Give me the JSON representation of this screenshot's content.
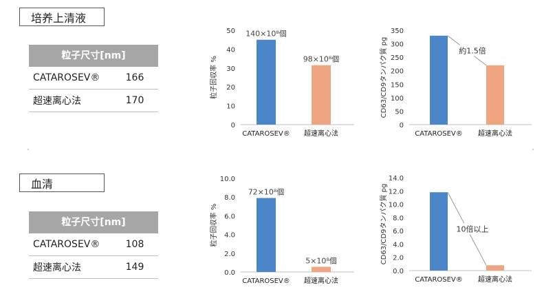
{
  "sections": [
    {
      "label": "培养上清液",
      "table": {
        "header": "粒子尺寸[nm]",
        "rows": [
          {
            "method": "CATAROSEV®",
            "value": "166"
          },
          {
            "method": "超速离心法",
            "value": "170"
          }
        ]
      }
    },
    {
      "label": "血清",
      "table": {
        "header": "粒子尺寸[nm]",
        "rows": [
          {
            "method": "CATAROSEV®",
            "value": "108"
          },
          {
            "method": "超速离心法",
            "value": "149"
          }
        ]
      }
    }
  ],
  "colors": {
    "blue": "#4a86c8",
    "orange": "#f0a582",
    "header_gray": "#a6a6a6"
  },
  "chart_data": [
    {
      "id": "c1",
      "type": "bar",
      "categories": [
        "CATAROSEV®",
        "超速离心法"
      ],
      "values": [
        45,
        31.5
      ],
      "data_labels": [
        "140×10⁸個",
        "98×10⁸個"
      ],
      "ylabel": "粒子回収率 %",
      "ylim": [
        0,
        50
      ],
      "yticks": [
        "0",
        "10",
        "20",
        "30",
        "40",
        "50"
      ],
      "grid": false
    },
    {
      "id": "c2",
      "type": "bar",
      "categories": [
        "CATAROSEV®",
        "超速离心法"
      ],
      "values": [
        330,
        220
      ],
      "ylabel": "CD63/CD9タンパク質 pg",
      "ylim": [
        0,
        350
      ],
      "yticks": [
        "0",
        "50",
        "100",
        "150",
        "200",
        "250",
        "300",
        "350"
      ],
      "annotation": "約1.5倍",
      "grid": false
    },
    {
      "id": "c3",
      "type": "bar",
      "categories": [
        "CATAROSEV®",
        "超速离心法"
      ],
      "values": [
        7.9,
        0.55
      ],
      "data_labels": [
        "72×10⁸個",
        "5×10⁸個"
      ],
      "ylabel": "粒子回収率 %",
      "ylim": [
        0,
        10
      ],
      "yticks": [
        "0.0",
        "2.0",
        "4.0",
        "6.0",
        "8.0",
        "10.0"
      ],
      "grid": false
    },
    {
      "id": "c4",
      "type": "bar",
      "categories": [
        "CATAROSEV®",
        "超速离心法"
      ],
      "values": [
        11.8,
        0.8
      ],
      "ylabel": "CD63/CD9タンパク質 pg",
      "ylim": [
        0,
        14
      ],
      "yticks": [
        "0.0",
        "2.0",
        "4.0",
        "6.0",
        "8.0",
        "10.0",
        "12.0",
        "14.0"
      ],
      "annotation": "10倍以上",
      "grid": false
    }
  ]
}
